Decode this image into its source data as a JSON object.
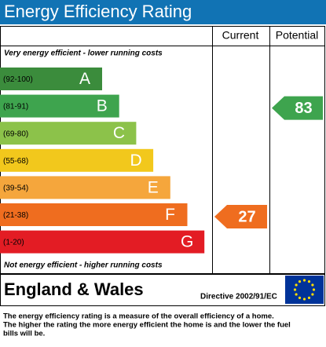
{
  "title": "Energy Efficiency Rating",
  "columns": [
    "Current",
    "Potential"
  ],
  "top_note": "Very energy efficient - lower running costs",
  "bottom_note": "Not energy efficient - higher running costs",
  "bands": [
    {
      "range": "(92-100)",
      "letter": "A",
      "color": "#3b8c3c"
    },
    {
      "range": "(81-91)",
      "letter": "B",
      "color": "#3ea44e"
    },
    {
      "range": "(69-80)",
      "letter": "C",
      "color": "#8cc24a"
    },
    {
      "range": "(55-68)",
      "letter": "D",
      "color": "#f2c81c"
    },
    {
      "range": "(39-54)",
      "letter": "E",
      "color": "#f5a63c"
    },
    {
      "range": "(21-38)",
      "letter": "F",
      "color": "#ef6d1f"
    },
    {
      "range": "(1-20)",
      "letter": "G",
      "color": "#e31c24"
    }
  ],
  "current": {
    "value": 27
  },
  "potential": {
    "value": 83
  },
  "footer": {
    "region": "England & Wales",
    "directive": "Directive 2002/91/EC"
  },
  "description": [
    "The energy efficiency rating is a measure of the overall efficiency of a home.",
    "The higher the rating the more energy efficient the home is and the lower the fuel",
    "bills will be."
  ]
}
